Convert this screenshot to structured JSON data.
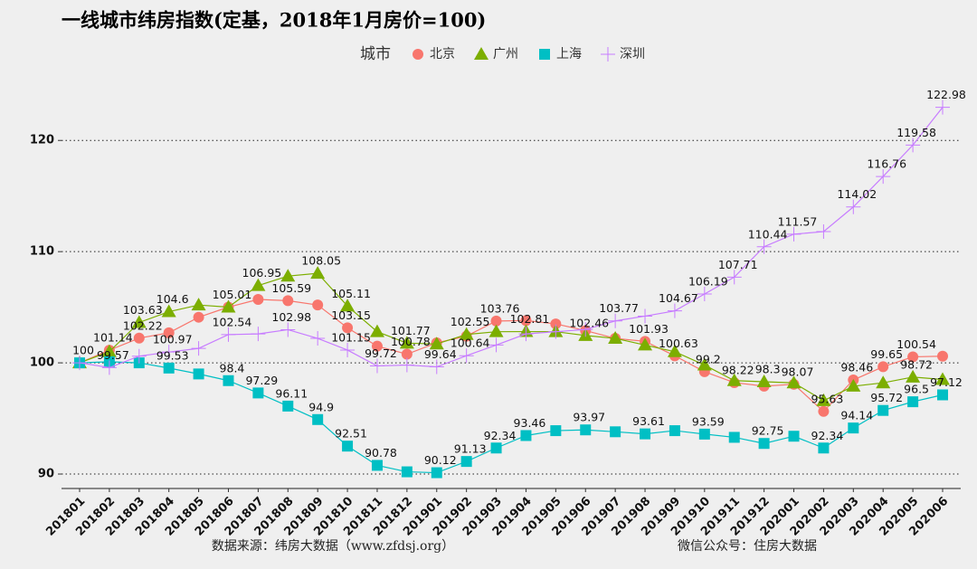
{
  "chart_data": {
    "type": "line",
    "title": "一线城市纬房指数(定基，2018年1月房价=100)",
    "legend_title": "城市",
    "categories": [
      "201801",
      "201802",
      "201803",
      "201804",
      "201805",
      "201806",
      "201807",
      "201808",
      "201809",
      "201810",
      "201811",
      "201812",
      "201901",
      "201902",
      "201903",
      "201904",
      "201905",
      "201906",
      "201907",
      "201908",
      "201909",
      "201910",
      "201911",
      "201912",
      "202001",
      "202002",
      "202003",
      "202004",
      "202005",
      "202006"
    ],
    "series": [
      {
        "name": "北京",
        "color": "#f8766d",
        "marker": "circle",
        "values": [
          100,
          101.14,
          102.22,
          102.7,
          104.1,
          105.01,
          105.7,
          105.59,
          105.2,
          103.15,
          101.5,
          100.78,
          101.8,
          102.4,
          103.76,
          103.8,
          103.5,
          102.9,
          102.2,
          101.93,
          100.63,
          99.2,
          98.22,
          97.9,
          98.07,
          95.63,
          98.46,
          99.65,
          100.54,
          100.6
        ],
        "value_labels": [
          "100",
          "101.14",
          "102.22",
          null,
          null,
          null,
          null,
          "105.59",
          null,
          "103.15",
          null,
          "100.78",
          null,
          null,
          "103.76",
          null,
          null,
          null,
          null,
          "101.93",
          "100.63",
          "99.2",
          "98.22",
          null,
          "98.07",
          "95.63",
          "98.46",
          "99.65",
          "100.54",
          null
        ]
      },
      {
        "name": "广州",
        "color": "#7cae00",
        "marker": "triangle",
        "values": [
          100,
          101.0,
          103.63,
          104.6,
          105.2,
          105.01,
          106.95,
          107.8,
          108.05,
          105.11,
          102.8,
          101.77,
          101.7,
          102.55,
          102.8,
          102.81,
          102.8,
          102.46,
          102.2,
          101.6,
          101.0,
          99.8,
          98.4,
          98.3,
          98.2,
          96.6,
          97.9,
          98.2,
          98.72,
          98.5
        ],
        "value_labels": [
          null,
          null,
          "103.63",
          "104.6",
          null,
          "105.01",
          "106.95",
          null,
          "108.05",
          "105.11",
          null,
          "101.77",
          null,
          "102.55",
          null,
          "102.81",
          null,
          "102.46",
          null,
          null,
          null,
          null,
          null,
          "98.3",
          null,
          null,
          null,
          null,
          "98.72",
          null
        ]
      },
      {
        "name": "上海",
        "color": "#00bfc4",
        "marker": "square",
        "values": [
          100,
          100.1,
          100.0,
          99.53,
          99.0,
          98.4,
          97.29,
          96.11,
          94.9,
          92.51,
          90.78,
          90.2,
          90.12,
          91.13,
          92.34,
          93.46,
          93.9,
          93.97,
          93.8,
          93.61,
          93.9,
          93.59,
          93.3,
          92.75,
          93.4,
          92.34,
          94.14,
          95.72,
          96.5,
          97.12
        ],
        "value_labels": [
          null,
          null,
          null,
          "99.53",
          null,
          "98.4",
          "97.29",
          "96.11",
          "94.9",
          "92.51",
          "90.78",
          null,
          "90.12",
          "91.13",
          "92.34",
          "93.46",
          null,
          "93.97",
          null,
          "93.61",
          null,
          "93.59",
          null,
          "92.75",
          null,
          "92.34",
          "94.14",
          "95.72",
          "96.5",
          "97.12"
        ]
      },
      {
        "name": "深圳",
        "color": "#c77cff",
        "marker": "plus",
        "values": [
          100,
          99.57,
          100.6,
          100.97,
          101.3,
          102.54,
          102.6,
          102.98,
          102.2,
          101.15,
          99.72,
          99.8,
          99.64,
          100.64,
          101.6,
          102.6,
          102.8,
          103.0,
          103.77,
          104.2,
          104.67,
          106.19,
          107.71,
          110.44,
          111.57,
          111.8,
          114.02,
          116.76,
          119.58,
          122.98
        ],
        "value_labels": [
          null,
          "99.57",
          null,
          "100.97",
          null,
          "102.54",
          null,
          "102.98",
          null,
          "101.15",
          "99.72",
          null,
          "99.64",
          "100.64",
          null,
          null,
          null,
          null,
          "103.77",
          null,
          "104.67",
          "106.19",
          "107.71",
          "110.44",
          "111.57",
          null,
          "114.02",
          "116.76",
          "119.58",
          "122.98"
        ]
      }
    ],
    "ylim": [
      88.7,
      124.9
    ],
    "yticks": [
      90,
      100,
      110,
      120
    ],
    "grid": true,
    "footer_left": "数据来源：纬房大数据（www.zfdsj.org）",
    "footer_right": "微信公众号：住房大数据"
  }
}
